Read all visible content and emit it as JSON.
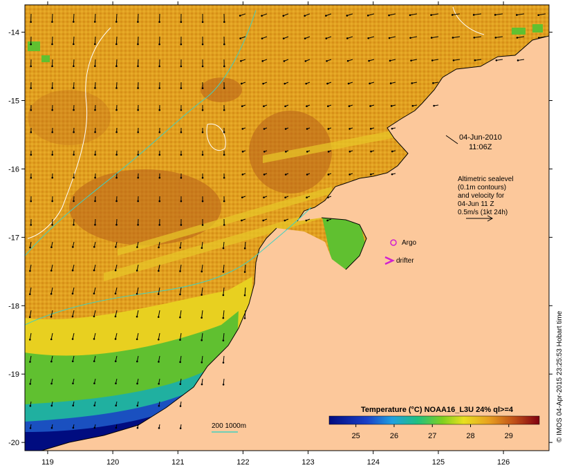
{
  "map": {
    "date_line1": "04-Jun-2010",
    "date_line2": "11:06Z",
    "altimetry_lines": [
      "Altimetric sealevel",
      "(0.1m contours)",
      "and velocity for",
      "04-Jun 11 Z",
      "0.5m/s (1kt 24h)"
    ],
    "legend_argo": "Argo",
    "legend_drifter": "drifter",
    "depth_legend": "200  1000m",
    "credit": "© IMOS 04-Apr-2015 23:25:53 Hobart time",
    "lon_range": [
      118.65,
      126.7
    ],
    "lat_range": [
      -20.12,
      -13.6
    ],
    "x_ticks": [
      "119",
      "120",
      "121",
      "122",
      "123",
      "124",
      "125",
      "126"
    ],
    "y_ticks": [
      "-14",
      "-15",
      "-16",
      "-17",
      "-18",
      "-19",
      "-20"
    ],
    "colorbar": {
      "title": "Temperature (°C) NOAA16_L3U 24% ql>=4",
      "ticks": [
        "25",
        "26",
        "27",
        "28",
        "29"
      ],
      "range": [
        24.3,
        29.8
      ]
    },
    "colors": {
      "land": "#fcc89b",
      "sst_main": "#e0a020",
      "sst_dark": "#b8601a",
      "sst_yellow": "#e8d020",
      "sst_green": "#60c030",
      "sst_cyan": "#20b0b0",
      "sst_blue": "#1a50c0",
      "sst_navy": "#000c80",
      "contour_200": "#40d0c0",
      "argo": "#d020d0"
    }
  }
}
